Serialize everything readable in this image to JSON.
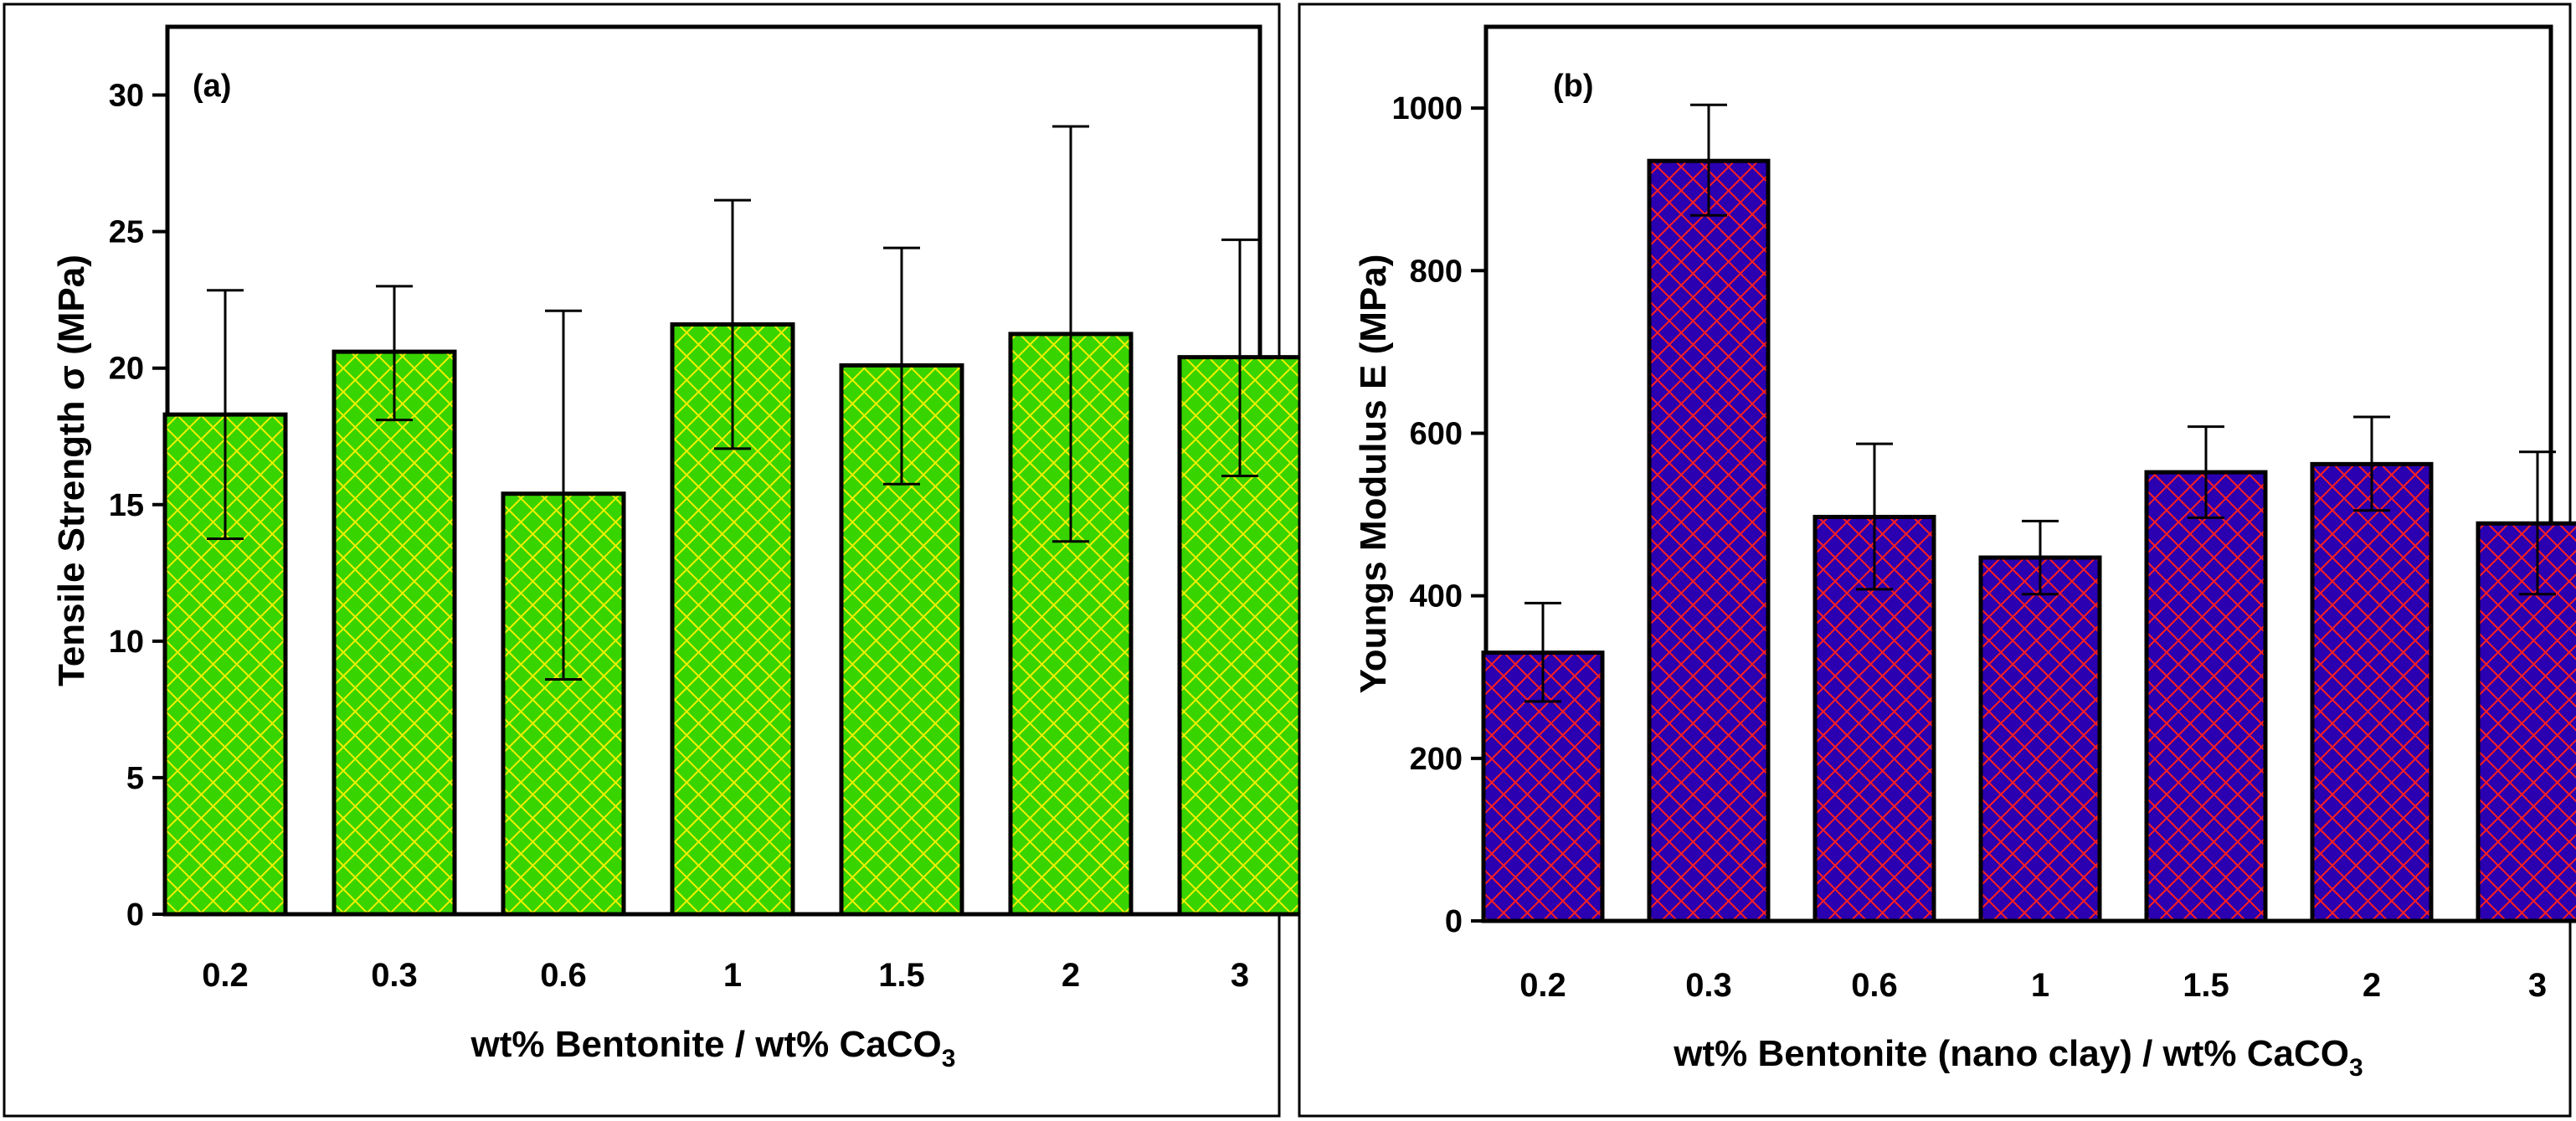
{
  "chart_data": [
    {
      "type": "bar",
      "panel_label": "(a)",
      "categories": [
        "0.2",
        "0.3",
        "0.6",
        "1",
        "1.5",
        "2",
        "3"
      ],
      "values": [
        18.3,
        20.6,
        15.4,
        21.6,
        20.1,
        21.25,
        20.4
      ],
      "error_low": [
        13.75,
        18.1,
        8.6,
        17.05,
        15.75,
        13.65,
        16.05
      ],
      "error_high": [
        22.85,
        23.0,
        22.1,
        26.15,
        24.4,
        28.85,
        24.7
      ],
      "ylabel": "Tensile Strength σ (MPa)",
      "xlabel_main": "wt% Bentonite / wt% CaCO",
      "xlabel_sub": "3",
      "ylim": [
        0,
        32.5
      ],
      "yticks": [
        "0",
        "5",
        "10",
        "15",
        "20",
        "25",
        "30"
      ],
      "fill_color": "#38d400",
      "hatch_color": "#f0f000"
    },
    {
      "type": "bar",
      "panel_label": "(b)",
      "categories": [
        "0.2",
        "0.3",
        "0.6",
        "1",
        "1.5",
        "2",
        "3"
      ],
      "values": [
        330,
        935,
        497,
        447,
        552,
        562,
        489
      ],
      "error_low": [
        270,
        868,
        408,
        402,
        496,
        505,
        402
      ],
      "error_high": [
        391,
        1004,
        587,
        492,
        608,
        620,
        577
      ],
      "ylabel": "Youngs Modulus E (MPa)",
      "xlabel_main": "wt% Bentonite (nano clay) / wt% CaCO",
      "xlabel_sub": "3",
      "ylim": [
        0,
        1100
      ],
      "yticks": [
        "0",
        "200",
        "400",
        "600",
        "800",
        "1000"
      ],
      "fill_color": "#2a00b0",
      "hatch_color": "#ff2020"
    }
  ]
}
